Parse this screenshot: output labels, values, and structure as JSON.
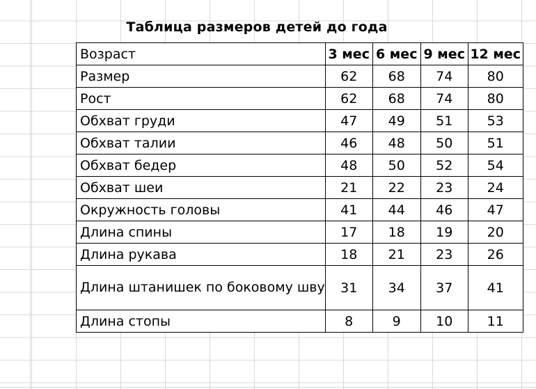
{
  "title": "Таблица размеров детей до года",
  "table": {
    "header": [
      "Возраст",
      "3 мес",
      "6 мес",
      "9 мес",
      "12 мес"
    ],
    "rows": [
      {
        "label": "Размер",
        "values": [
          "62",
          "68",
          "74",
          "80"
        ]
      },
      {
        "label": "Рост",
        "values": [
          "62",
          "68",
          "74",
          "80"
        ]
      },
      {
        "label": "Обхват груди",
        "values": [
          "47",
          "49",
          "51",
          "53"
        ]
      },
      {
        "label": "Обхват талии",
        "values": [
          "46",
          "48",
          "50",
          "51"
        ]
      },
      {
        "label": "Обхват бедер",
        "values": [
          "48",
          "50",
          "52",
          "54"
        ]
      },
      {
        "label": "Обхват шеи",
        "values": [
          "21",
          "22",
          "23",
          "24"
        ]
      },
      {
        "label": "Окружность головы",
        "values": [
          "41",
          "44",
          "46",
          "47"
        ]
      },
      {
        "label": "Длина спины",
        "values": [
          "17",
          "18",
          "19",
          "20"
        ]
      },
      {
        "label": "Длина рукава",
        "values": [
          "18",
          "21",
          "23",
          "26"
        ]
      },
      {
        "label": "Длина штанишек по боковому шву",
        "values": [
          "31",
          "34",
          "37",
          "41"
        ]
      },
      {
        "label": "Длина стопы",
        "values": [
          "8",
          "9",
          "10",
          "11"
        ]
      }
    ]
  }
}
